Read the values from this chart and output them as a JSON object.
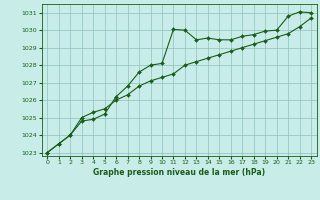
{
  "xlabel": "Graphe pression niveau de la mer (hPa)",
  "bg_color": "#c8ede8",
  "grid_color": "#90c0bb",
  "line_color": "#1a5c1a",
  "ylim": [
    1022.8,
    1031.5
  ],
  "xlim": [
    -0.5,
    23.5
  ],
  "yticks": [
    1023,
    1024,
    1025,
    1026,
    1027,
    1028,
    1029,
    1030,
    1031
  ],
  "xticks": [
    0,
    1,
    2,
    3,
    4,
    5,
    6,
    7,
    8,
    9,
    10,
    11,
    12,
    13,
    14,
    15,
    16,
    17,
    18,
    19,
    20,
    21,
    22,
    23
  ],
  "series1": [
    1023.0,
    1023.5,
    1024.0,
    1024.8,
    1024.9,
    1025.2,
    1026.2,
    1026.8,
    1027.6,
    1028.0,
    1028.1,
    1030.05,
    1030.0,
    1029.45,
    1029.55,
    1029.45,
    1029.45,
    1029.65,
    1029.75,
    1029.95,
    1030.0,
    1030.8,
    1031.05,
    1031.0
  ],
  "series2": [
    1023.0,
    1023.5,
    1024.0,
    1025.0,
    1025.3,
    1025.5,
    1026.0,
    1026.3,
    1026.8,
    1027.1,
    1027.3,
    1027.5,
    1028.0,
    1028.2,
    1028.4,
    1028.6,
    1028.8,
    1029.0,
    1029.2,
    1029.4,
    1029.6,
    1029.8,
    1030.2,
    1030.7
  ],
  "markersize": 2.0,
  "linewidth": 0.8,
  "tick_fontsize": 4.5,
  "xlabel_fontsize": 5.5
}
